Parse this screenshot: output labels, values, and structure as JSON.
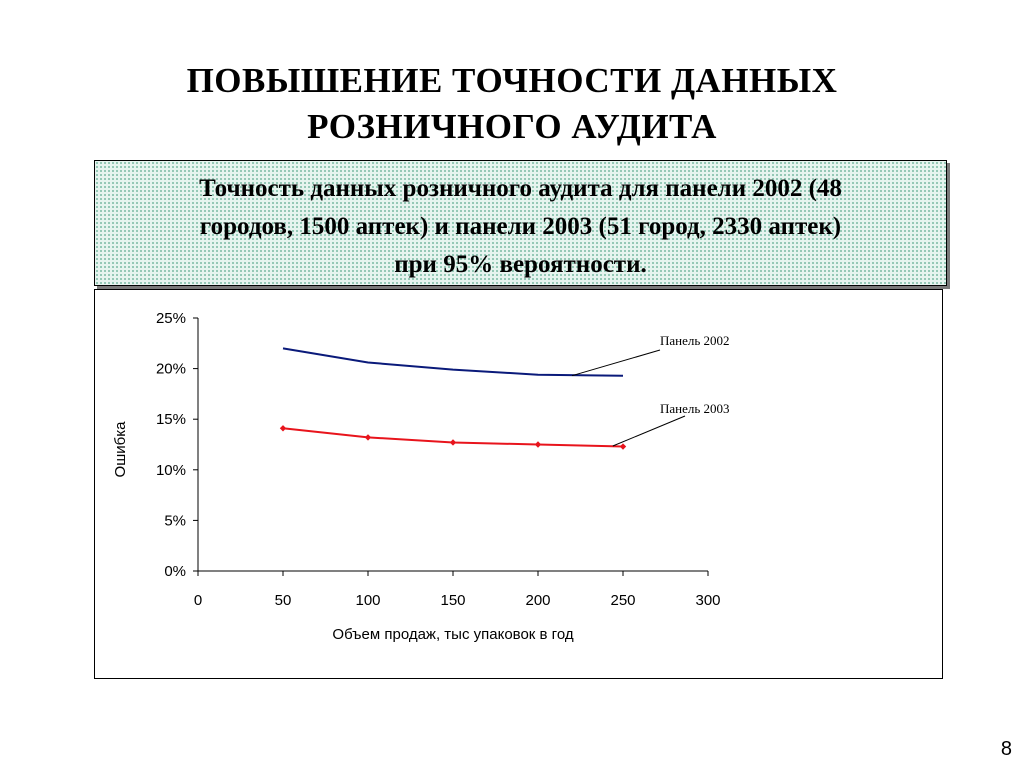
{
  "slide": {
    "title_line1": "ПОВЫШЕНИЕ ТОЧНОСТИ ДАННЫХ",
    "title_line2": "РОЗНИЧНОГО АУДИТА",
    "subtitle_line1": "Точность данных розничного аудита для панели 2002 (48",
    "subtitle_line2": "городов, 1500 аптек) и панели 2003 (51 город, 2330 аптек)",
    "subtitle_line3": "при  95% вероятности.",
    "page_number": "8"
  },
  "chart_data": {
    "type": "line",
    "xlabel": "Объем продаж, тыс упаковок  в год",
    "ylabel": "Ошибка",
    "xlim": [
      0,
      300
    ],
    "ylim": [
      0,
      25
    ],
    "x_ticks": [
      "0",
      "50",
      "100",
      "150",
      "200",
      "250",
      "300"
    ],
    "y_ticks": [
      "0%",
      "5%",
      "10%",
      "15%",
      "20%",
      "25%"
    ],
    "grid": false,
    "legend": "callout labels",
    "series": [
      {
        "name": "Панель 2002",
        "color": "#0a1a7a",
        "markers": false,
        "x": [
          50,
          100,
          150,
          200,
          250
        ],
        "values": [
          22.0,
          20.6,
          19.9,
          19.4,
          19.3
        ]
      },
      {
        "name": "Панель 2003",
        "color": "#e8141c",
        "markers": true,
        "x": [
          50,
          100,
          150,
          200,
          250
        ],
        "values": [
          14.1,
          13.2,
          12.7,
          12.5,
          12.3
        ]
      }
    ]
  }
}
